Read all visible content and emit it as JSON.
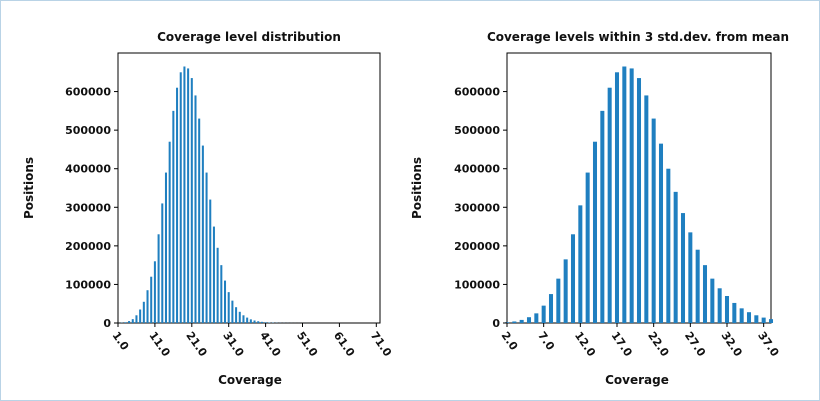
{
  "colors": {
    "bar": "#1f7fc0",
    "frame": "#b9d3e6",
    "axis": "#000000"
  },
  "chart_data": [
    {
      "type": "bar",
      "title": "Coverage level distribution",
      "xlabel": "Coverage",
      "ylabel": "Positions",
      "xlim": [
        1,
        72
      ],
      "ylim": [
        0,
        700000
      ],
      "xticks": [
        "1.0",
        "11.0",
        "21.0",
        "31.0",
        "41.0",
        "51.0",
        "61.0",
        "71.0"
      ],
      "yticks": [
        "0",
        "100000",
        "200000",
        "300000",
        "400000",
        "500000",
        "600000"
      ],
      "x": [
        1,
        2,
        3,
        4,
        5,
        6,
        7,
        8,
        9,
        10,
        11,
        12,
        13,
        14,
        15,
        16,
        17,
        18,
        19,
        20,
        21,
        22,
        23,
        24,
        25,
        26,
        27,
        28,
        29,
        30,
        31,
        32,
        33,
        34,
        35,
        36,
        37,
        38,
        39,
        40,
        41,
        42,
        43,
        44,
        45,
        46,
        47,
        48,
        49,
        50,
        51,
        52,
        53,
        54,
        55,
        56,
        57,
        58,
        59,
        60,
        61,
        62,
        63,
        64,
        65,
        66,
        67,
        68,
        69,
        70,
        71
      ],
      "values": [
        200,
        800,
        2000,
        5000,
        10000,
        20000,
        35000,
        55000,
        85000,
        120000,
        160000,
        230000,
        310000,
        390000,
        470000,
        550000,
        610000,
        650000,
        665000,
        660000,
        635000,
        590000,
        530000,
        460000,
        390000,
        320000,
        250000,
        195000,
        150000,
        110000,
        80000,
        58000,
        41000,
        29000,
        20000,
        14000,
        9500,
        6500,
        4500,
        3000,
        2000,
        1400,
        900,
        600,
        400,
        300,
        200,
        150,
        100,
        80,
        60,
        40,
        30,
        20,
        15,
        10,
        8,
        6,
        4,
        3,
        2,
        2,
        1,
        1,
        1,
        0,
        0,
        0,
        0,
        0,
        0
      ],
      "grid": false
    },
    {
      "type": "bar",
      "title": "Coverage levels within 3 std.dev. from mean",
      "xlabel": "Coverage",
      "ylabel": "Positions",
      "xlim": [
        2,
        38
      ],
      "ylim": [
        0,
        700000
      ],
      "xticks": [
        "2.0",
        "7.0",
        "12.0",
        "17.0",
        "22.0",
        "27.0",
        "32.0",
        "37.0"
      ],
      "yticks": [
        "0",
        "100000",
        "200000",
        "300000",
        "400000",
        "500000",
        "600000"
      ],
      "x": [
        2,
        3,
        4,
        5,
        6,
        7,
        8,
        9,
        10,
        11,
        12,
        13,
        14,
        15,
        16,
        17,
        18,
        19,
        20,
        21,
        22,
        23,
        24,
        25,
        26,
        27,
        28,
        29,
        30,
        31,
        32,
        33,
        34,
        35,
        36,
        37,
        38
      ],
      "values": [
        2000,
        4000,
        8000,
        15000,
        25000,
        45000,
        75000,
        115000,
        165000,
        230000,
        305000,
        390000,
        470000,
        550000,
        610000,
        650000,
        665000,
        660000,
        635000,
        590000,
        530000,
        465000,
        400000,
        340000,
        285000,
        235000,
        190000,
        150000,
        115000,
        90000,
        70000,
        52000,
        38000,
        28000,
        20000,
        14000,
        10000
      ],
      "grid": false
    }
  ]
}
